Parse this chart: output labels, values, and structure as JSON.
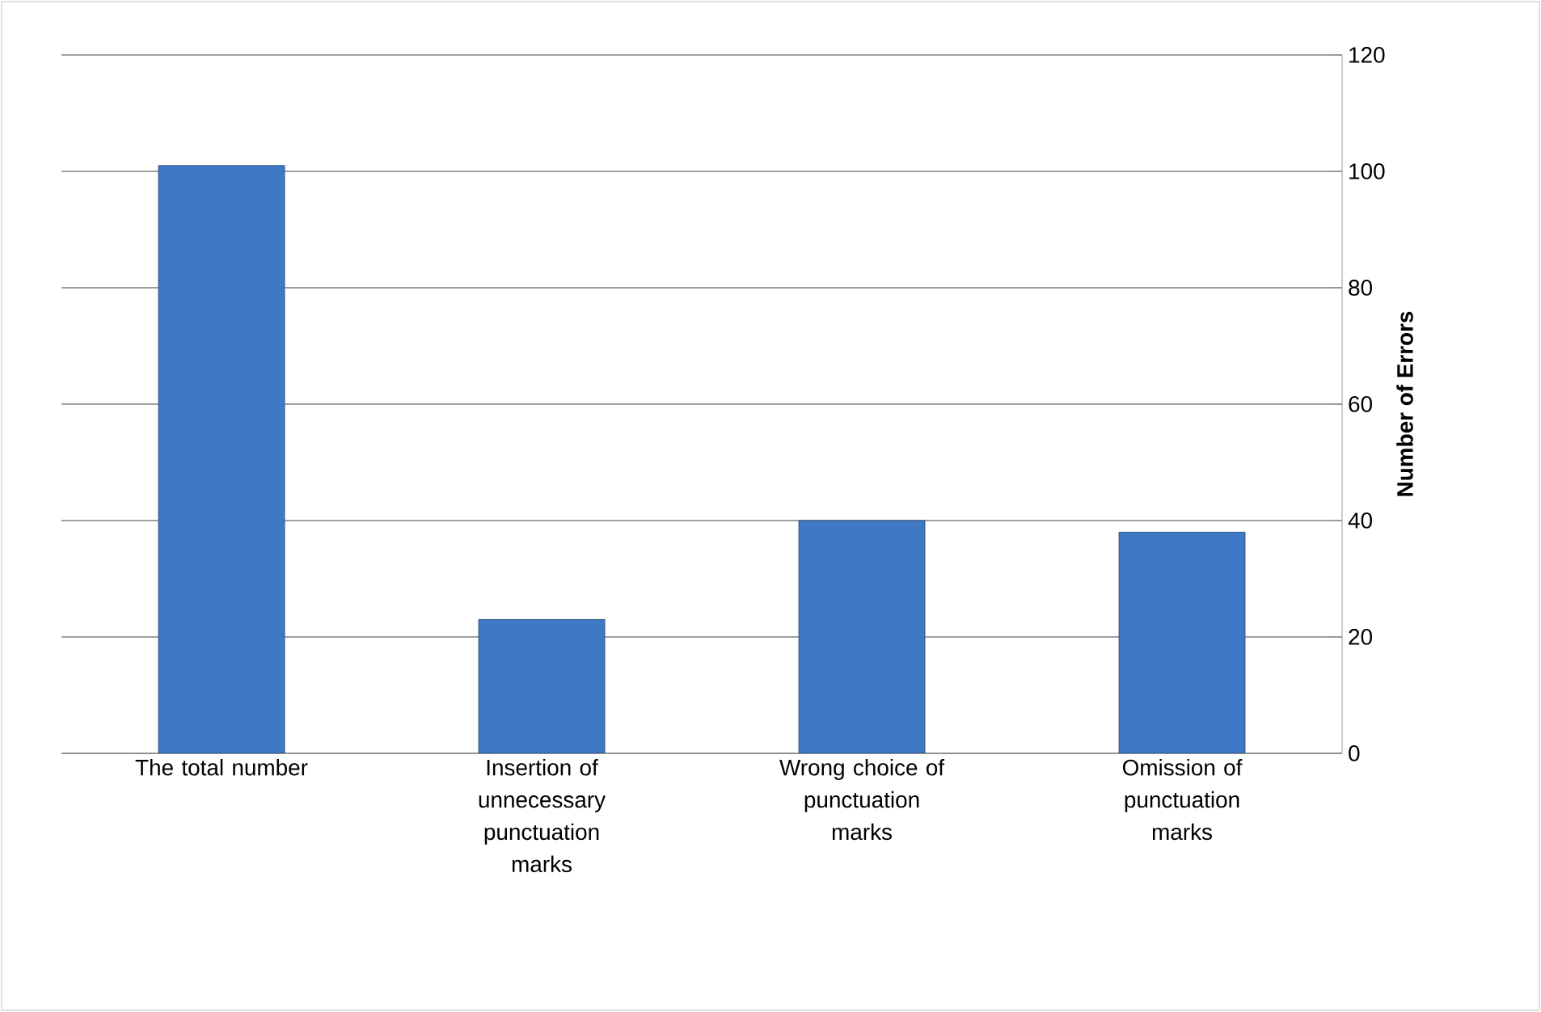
{
  "chart_data": {
    "type": "bar",
    "ylabel": "Number  of Errors",
    "categories": [
      "The total number",
      "Insertion of unnecessary punctuation marks",
      "Wrong choice of punctuation marks",
      "Omission of punctuation marks"
    ],
    "values": [
      101,
      23,
      40,
      38
    ],
    "color": "#3f78c4",
    "ylim": [
      0,
      120
    ],
    "yticks": [
      0,
      20,
      40,
      60,
      80,
      100,
      120
    ],
    "grid": "y"
  }
}
